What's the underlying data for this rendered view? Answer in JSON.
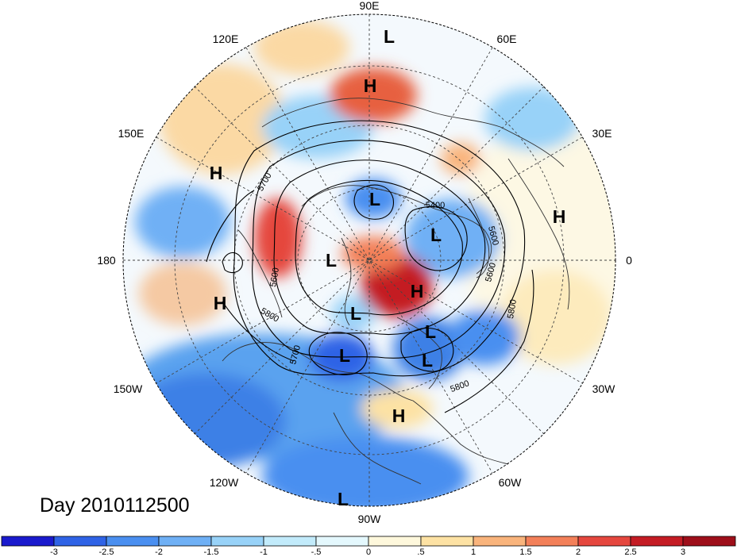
{
  "map": {
    "title": "Day 2010112500",
    "longitude_labels": [
      {
        "id": "lon-90e",
        "text": "90E"
      },
      {
        "id": "lon-60e",
        "text": "60E"
      },
      {
        "id": "lon-120e",
        "text": "120E"
      },
      {
        "id": "lon-150e",
        "text": "150E"
      },
      {
        "id": "lon-30e",
        "text": "30E"
      },
      {
        "id": "lon-180",
        "text": "180"
      },
      {
        "id": "lon-0",
        "text": "0"
      },
      {
        "id": "lon-150w",
        "text": "150W"
      },
      {
        "id": "lon-30w",
        "text": "30W"
      },
      {
        "id": "lon-120w",
        "text": "120W"
      },
      {
        "id": "lon-60w",
        "text": "60W"
      },
      {
        "id": "lon-90w",
        "text": "90W"
      }
    ],
    "pressure_centers": [
      "L",
      "H",
      "H",
      "L",
      "L",
      "H",
      "L",
      "H",
      "L",
      "H",
      "L",
      "L",
      "L",
      "H",
      "L"
    ],
    "contour_labels": [
      "5700",
      "5400",
      "5600",
      "5600",
      "5800",
      "5600",
      "5800",
      "5700",
      "5800",
      "5800"
    ],
    "colorbar": {
      "ticks": [
        "-3",
        "-2.5",
        "-2",
        "-1.5",
        "-1",
        "-.5",
        "0",
        ".5",
        "1",
        "1.5",
        "2",
        "2.5",
        "3"
      ],
      "colors": [
        "#1a1acd",
        "#2f63e6",
        "#4a8ff0",
        "#6fb0f5",
        "#98d2f8",
        "#c2ebfb",
        "#e4f8fd",
        "#fef8dc",
        "#fde2a4",
        "#f9b47c",
        "#f38059",
        "#e5473e",
        "#c41c24",
        "#9e0f1a"
      ]
    }
  }
}
